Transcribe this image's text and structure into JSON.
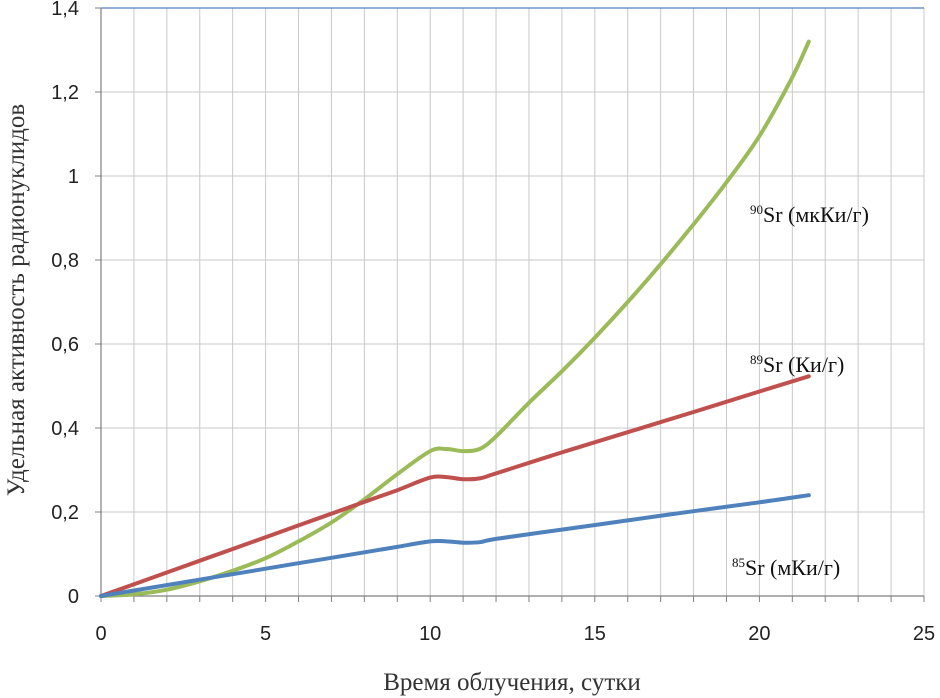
{
  "chart_data": {
    "type": "line",
    "title": "",
    "xlabel": "Время облучения, сутки",
    "ylabel": "Удельная активность радионуклидов",
    "xlim": [
      0,
      25
    ],
    "ylim": [
      0,
      1.4
    ],
    "x_ticks": [
      0,
      5,
      10,
      15,
      20,
      25
    ],
    "x_tick_labels": [
      "0",
      "5",
      "10",
      "15",
      "20",
      "25"
    ],
    "y_ticks": [
      0,
      0.2,
      0.4,
      0.6,
      0.8,
      1.0,
      1.2,
      1.4
    ],
    "y_tick_labels": [
      "0",
      "0,2",
      "0,4",
      "0,6",
      "0,8",
      "1",
      "1,2",
      "1,4"
    ],
    "grid": true,
    "legend": "inline labels next to lines",
    "series": [
      {
        "id": "sr90",
        "isotope_mass": "90",
        "label_text": "Sr (мкКи/г)",
        "color": "#9bbb59",
        "x": [
          0,
          1,
          2,
          3,
          4,
          5,
          6,
          7,
          8,
          9,
          10,
          10.5,
          11,
          11.5,
          12,
          13,
          14,
          15,
          16,
          17,
          18,
          19,
          20,
          21,
          21.5
        ],
        "y": [
          0,
          0.004,
          0.015,
          0.035,
          0.06,
          0.09,
          0.13,
          0.175,
          0.23,
          0.29,
          0.345,
          0.35,
          0.345,
          0.35,
          0.38,
          0.46,
          0.535,
          0.615,
          0.7,
          0.79,
          0.885,
          0.985,
          1.095,
          1.235,
          1.32
        ]
      },
      {
        "id": "sr89",
        "isotope_mass": "89",
        "label_text": "Sr (Ки/г)",
        "color": "#c0504d",
        "x": [
          0,
          2,
          4,
          6,
          8,
          9,
          10,
          10.5,
          11,
          11.5,
          12,
          14,
          16,
          18,
          20,
          21.5
        ],
        "y": [
          0,
          0.056,
          0.112,
          0.168,
          0.224,
          0.252,
          0.282,
          0.283,
          0.278,
          0.28,
          0.292,
          0.342,
          0.39,
          0.438,
          0.487,
          0.523
        ]
      },
      {
        "id": "sr85",
        "isotope_mass": "85",
        "label_text": "Sr (мКи/г)",
        "color": "#4f81bd",
        "x": [
          0,
          2,
          4,
          6,
          8,
          9,
          10,
          10.5,
          11,
          11.5,
          12,
          14,
          16,
          18,
          20,
          21.5
        ],
        "y": [
          0,
          0.026,
          0.052,
          0.078,
          0.104,
          0.117,
          0.13,
          0.13,
          0.127,
          0.128,
          0.136,
          0.158,
          0.18,
          0.202,
          0.223,
          0.24
        ]
      }
    ]
  }
}
